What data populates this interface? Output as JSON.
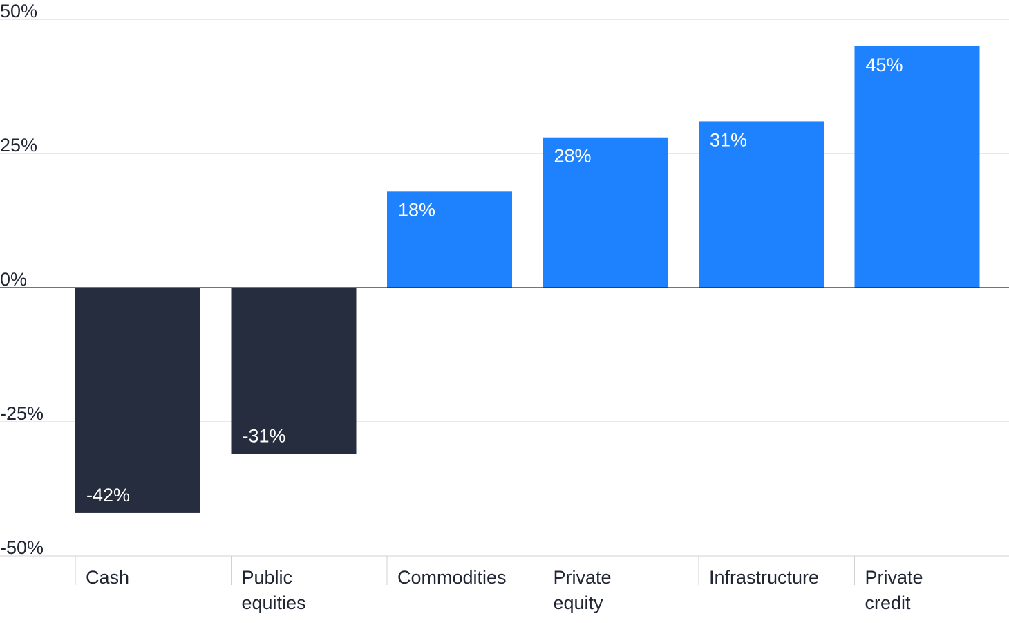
{
  "chart_data": {
    "type": "bar",
    "categories": [
      [
        "Cash"
      ],
      [
        "Public",
        "equities"
      ],
      [
        "Commodities"
      ],
      [
        "Private",
        "equity"
      ],
      [
        "Infrastructure"
      ],
      [
        "Private",
        "credit"
      ]
    ],
    "values": [
      -42,
      -31,
      18,
      28,
      31,
      45
    ],
    "value_labels": [
      "-42%",
      "-31%",
      "18%",
      "28%",
      "31%",
      "45%"
    ],
    "ylim": [
      -50,
      50
    ],
    "yticks": [
      50,
      25,
      0,
      -25,
      -50
    ],
    "ytick_labels": [
      "50%",
      "25%",
      "0%",
      "-25%",
      "-50%"
    ],
    "grid": true,
    "colors": {
      "positive": "#1e82ff",
      "negative": "#252d3e",
      "grid": "#d0d0d0",
      "zero_line": "#222222"
    }
  }
}
